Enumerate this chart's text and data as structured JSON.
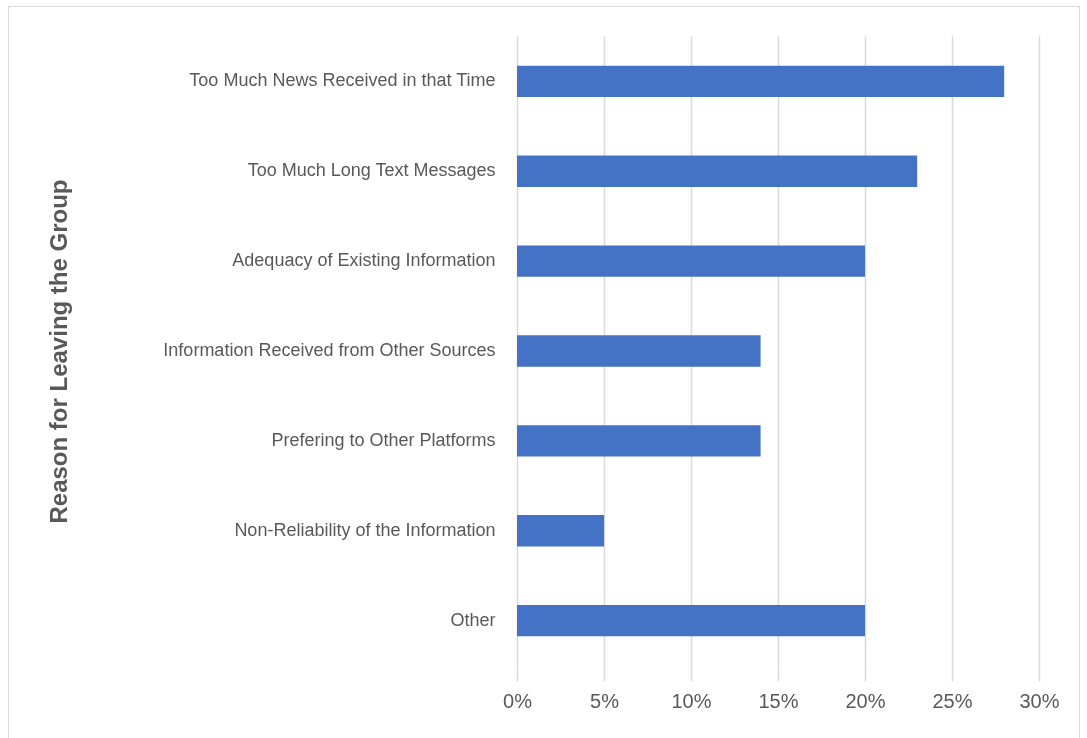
{
  "chart_data": {
    "type": "bar",
    "orientation": "horizontal",
    "ylabel": "Reason for Leaving the Group",
    "categories": [
      "Too Much News Received in that Time",
      "Too Much Long Text Messages",
      "Adequacy of Existing Information",
      "Information Received from Other Sources",
      "Prefering to Other Platforms",
      "Non-Reliability of the Information",
      "Other"
    ],
    "values": [
      28,
      23,
      20,
      14,
      14,
      5,
      20
    ],
    "color": "#4472c4",
    "xlim": [
      0,
      30
    ],
    "xticks": [
      {
        "value": 0,
        "label": "0%"
      },
      {
        "value": 5,
        "label": "5%"
      },
      {
        "value": 10,
        "label": "10%"
      },
      {
        "value": 15,
        "label": "15%"
      },
      {
        "value": 20,
        "label": "20%"
      },
      {
        "value": 25,
        "label": "25%"
      },
      {
        "value": 30,
        "label": "30%"
      }
    ],
    "grid": "x"
  }
}
